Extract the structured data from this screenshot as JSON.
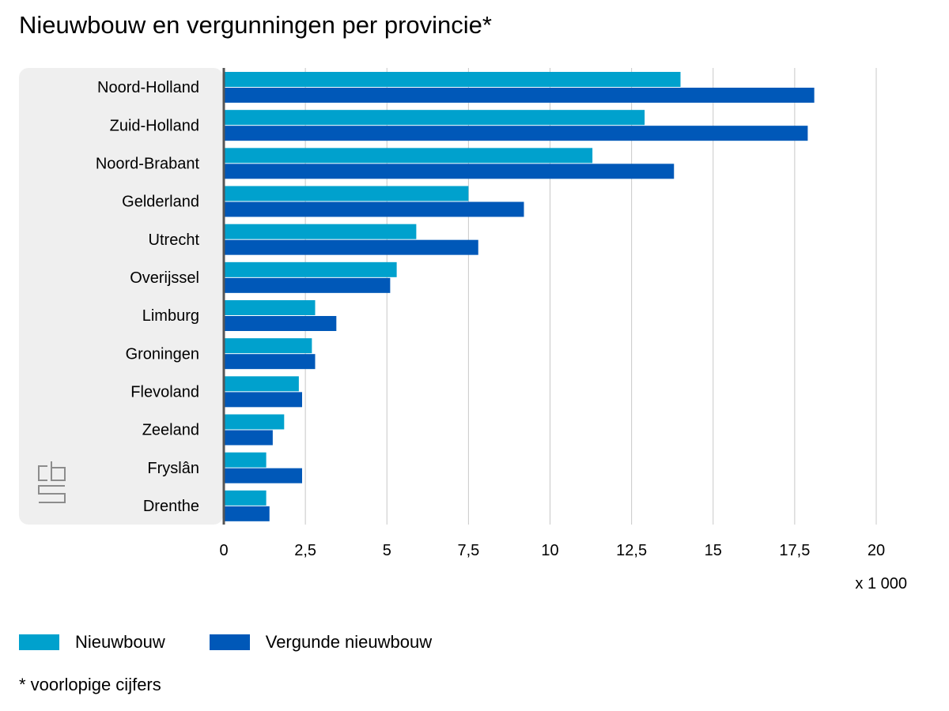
{
  "chart_data": {
    "type": "bar",
    "orientation": "horizontal",
    "title": "Nieuwbouw en vergunningen per provincie*",
    "categories": [
      "Noord-Holland",
      "Zuid-Holland",
      "Noord-Brabant",
      "Gelderland",
      "Utrecht",
      "Overijssel",
      "Limburg",
      "Groningen",
      "Flevoland",
      "Zeeland",
      "Fryslân",
      "Drenthe"
    ],
    "series": [
      {
        "name": "Nieuwbouw",
        "color": "#00a1cd",
        "values": [
          14.0,
          12.9,
          11.3,
          7.5,
          5.9,
          5.3,
          2.8,
          2.7,
          2.3,
          1.85,
          1.3,
          1.3
        ]
      },
      {
        "name": "Vergunde nieuwbouw",
        "color": "#0058b8",
        "values": [
          18.1,
          17.9,
          13.8,
          9.2,
          7.8,
          5.1,
          3.45,
          2.8,
          2.4,
          1.5,
          2.4,
          1.4
        ]
      }
    ],
    "xlim": [
      0,
      20
    ],
    "x_ticks": [
      0,
      2.5,
      5,
      7.5,
      10,
      12.5,
      15,
      17.5,
      20
    ],
    "x_tick_labels": [
      "0",
      "2,5",
      "5",
      "7,5",
      "10",
      "12,5",
      "15",
      "17,5",
      "20"
    ],
    "x_unit": "x 1 000",
    "grid": true,
    "legend_position": "bottom-left",
    "footnote": "* voorlopige cijfers",
    "logo": "cbs-logo"
  }
}
